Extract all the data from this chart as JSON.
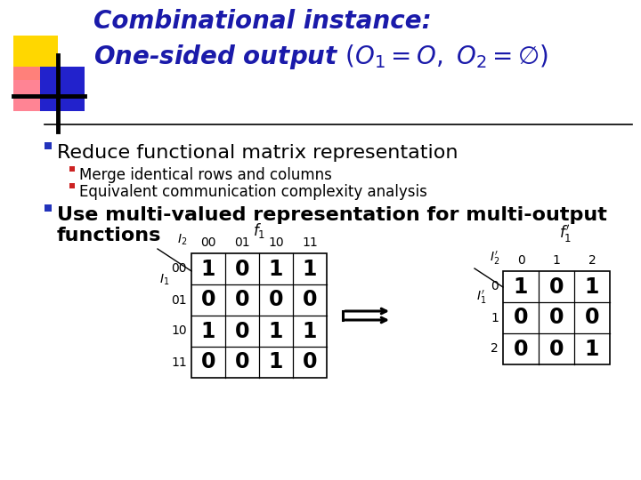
{
  "title_line1": "Combinational instance:",
  "title_line2": "One-sided output (O_1 = O, O_2 = ∅)",
  "title_color": "#1a1aaa",
  "bg_color": "#ffffff",
  "bullet1_color": "#2233bb",
  "bullet1_text": "Reduce functional matrix representation",
  "bullet2_color": "#cc2222",
  "sub_bullet1": "Merge identical rows and columns",
  "sub_bullet2": "Equivalent communication complexity analysis",
  "bullet3_color": "#2233bb",
  "bullet3_text1": "Use multi-valued representation for multi-output",
  "bullet3_text2": "functions",
  "table1_col_labels": [
    "00",
    "01",
    "10",
    "11"
  ],
  "table1_row_labels": [
    "00",
    "01",
    "10",
    "11"
  ],
  "table1_data": [
    [
      1,
      0,
      1,
      1
    ],
    [
      0,
      0,
      0,
      0
    ],
    [
      1,
      0,
      1,
      1
    ],
    [
      0,
      0,
      1,
      0
    ]
  ],
  "table2_col_labels": [
    "0",
    "1",
    "2"
  ],
  "table2_row_labels": [
    "0",
    "1",
    "2"
  ],
  "table2_data": [
    [
      1,
      0,
      1
    ],
    [
      0,
      0,
      0
    ],
    [
      0,
      0,
      1
    ]
  ],
  "deco_yellow": "#FFD700",
  "deco_red": "#FF7788",
  "deco_blue": "#2222CC",
  "separator_color": "#000000",
  "title_fontsize": 20,
  "bullet1_fontsize": 16,
  "sub_bullet_fontsize": 12,
  "bullet3_fontsize": 16
}
